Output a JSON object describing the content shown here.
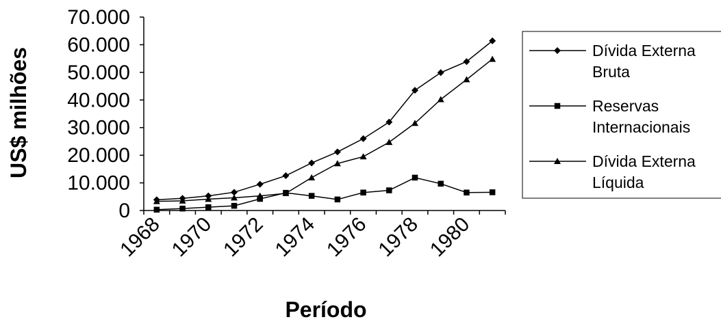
{
  "chart_data": {
    "type": "line",
    "title": "",
    "xlabel": "Período",
    "ylabel": "US$ milhões",
    "ylim": [
      0,
      70000
    ],
    "yticks": [
      0,
      10000,
      20000,
      30000,
      40000,
      50000,
      60000,
      70000
    ],
    "ytick_labels": [
      "0",
      "10.000",
      "20.000",
      "30.000",
      "40.000",
      "50.000",
      "60.000",
      "70.000"
    ],
    "xtick_labels": [
      "1968",
      "1970",
      "1972",
      "1974",
      "1976",
      "1978",
      "1980"
    ],
    "x": [
      1968,
      1969,
      1970,
      1971,
      1972,
      1973,
      1974,
      1975,
      1976,
      1977,
      1978,
      1979,
      1980,
      1981
    ],
    "grid": false,
    "legend_position": "right",
    "series": [
      {
        "name_lines": [
          "Dívida Externa",
          "Bruta"
        ],
        "marker": "diamond",
        "values": [
          3900,
          4400,
          5300,
          6600,
          9500,
          12600,
          17200,
          21200,
          26000,
          32000,
          43500,
          49900,
          53900,
          61400
        ]
      },
      {
        "name_lines": [
          "Reservas",
          "Internacionais"
        ],
        "marker": "square",
        "values": [
          300,
          700,
          1200,
          1700,
          4200,
          6400,
          5300,
          4000,
          6500,
          7300,
          11900,
          9700,
          6500,
          6600
        ]
      },
      {
        "name_lines": [
          "Dívida Externa",
          "Líquida"
        ],
        "marker": "triangle",
        "values": [
          3300,
          3500,
          4100,
          4600,
          5300,
          6200,
          11900,
          17000,
          19500,
          24700,
          31600,
          40200,
          47400,
          54800
        ]
      }
    ]
  }
}
